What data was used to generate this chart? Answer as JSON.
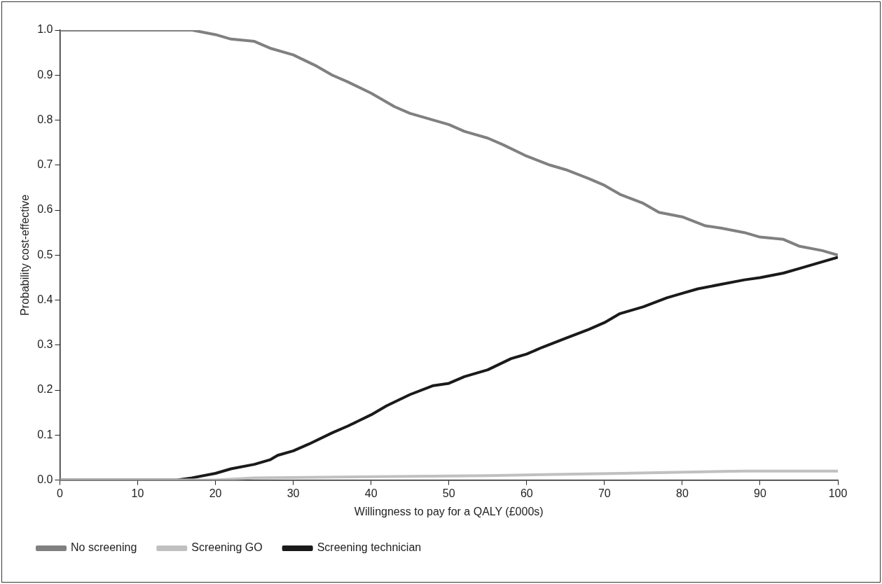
{
  "chart_data": {
    "type": "line",
    "xlabel": "Willingness to pay for a QALY (£000s)",
    "ylabel": "Probability cost-effective",
    "xlim": [
      0,
      100
    ],
    "xticks": [
      0,
      10,
      20,
      30,
      40,
      50,
      60,
      70,
      80,
      90,
      100
    ],
    "ylim": [
      0,
      1
    ],
    "yticks": [
      {
        "value": 0,
        "label": "0.0"
      },
      {
        "value": 0.1,
        "label": "0.1"
      },
      {
        "value": 0.2,
        "label": "0.2"
      },
      {
        "value": 0.3,
        "label": "0.3"
      },
      {
        "value": 0.4,
        "label": "0.4"
      },
      {
        "value": 0.5,
        "label": "0.5"
      },
      {
        "value": 0.6,
        "label": "0.6"
      },
      {
        "value": 0.7,
        "label": "0.7"
      },
      {
        "value": 0.8,
        "label": "0.8"
      },
      {
        "value": 0.9,
        "label": "0.9"
      },
      {
        "value": 1,
        "label": "1.0"
      }
    ],
    "grid": false,
    "legend": "bottom left",
    "marker": "none",
    "line_style": "solid",
    "series": [
      {
        "name": "No screening",
        "color": "#808080",
        "x": [
          0,
          15,
          17,
          20,
          22,
          25,
          27,
          30,
          33,
          35,
          37,
          40,
          43,
          45,
          50,
          52,
          55,
          57,
          60,
          63,
          65,
          68,
          70,
          72,
          75,
          77,
          80,
          83,
          85,
          88,
          90,
          93,
          95,
          98,
          100
        ],
        "values": [
          1.0,
          1.0,
          1.0,
          0.99,
          0.98,
          0.975,
          0.96,
          0.945,
          0.92,
          0.9,
          0.885,
          0.86,
          0.83,
          0.815,
          0.79,
          0.775,
          0.76,
          0.745,
          0.72,
          0.7,
          0.69,
          0.67,
          0.655,
          0.635,
          0.615,
          0.595,
          0.585,
          0.565,
          0.56,
          0.55,
          0.54,
          0.535,
          0.52,
          0.51,
          0.5
        ]
      },
      {
        "name": "Screening GO",
        "color": "#c0c0c0",
        "x": [
          0,
          20,
          25,
          55,
          72,
          88,
          100
        ],
        "values": [
          0,
          0,
          0.005,
          0.01,
          0.015,
          0.02,
          0.02
        ]
      },
      {
        "name": "Screening technician",
        "color": "#1a1a1a",
        "x": [
          0,
          15,
          17,
          20,
          22,
          25,
          27,
          28,
          30,
          32,
          35,
          37,
          40,
          42,
          45,
          48,
          50,
          52,
          55,
          58,
          60,
          62,
          65,
          68,
          70,
          72,
          75,
          78,
          80,
          82,
          85,
          88,
          90,
          93,
          95,
          98,
          100
        ],
        "values": [
          0,
          0,
          0.005,
          0.015,
          0.025,
          0.035,
          0.045,
          0.055,
          0.065,
          0.08,
          0.105,
          0.12,
          0.145,
          0.165,
          0.19,
          0.21,
          0.215,
          0.23,
          0.245,
          0.27,
          0.28,
          0.295,
          0.315,
          0.335,
          0.35,
          0.37,
          0.385,
          0.405,
          0.415,
          0.425,
          0.435,
          0.445,
          0.45,
          0.46,
          0.47,
          0.485,
          0.495
        ]
      }
    ]
  }
}
